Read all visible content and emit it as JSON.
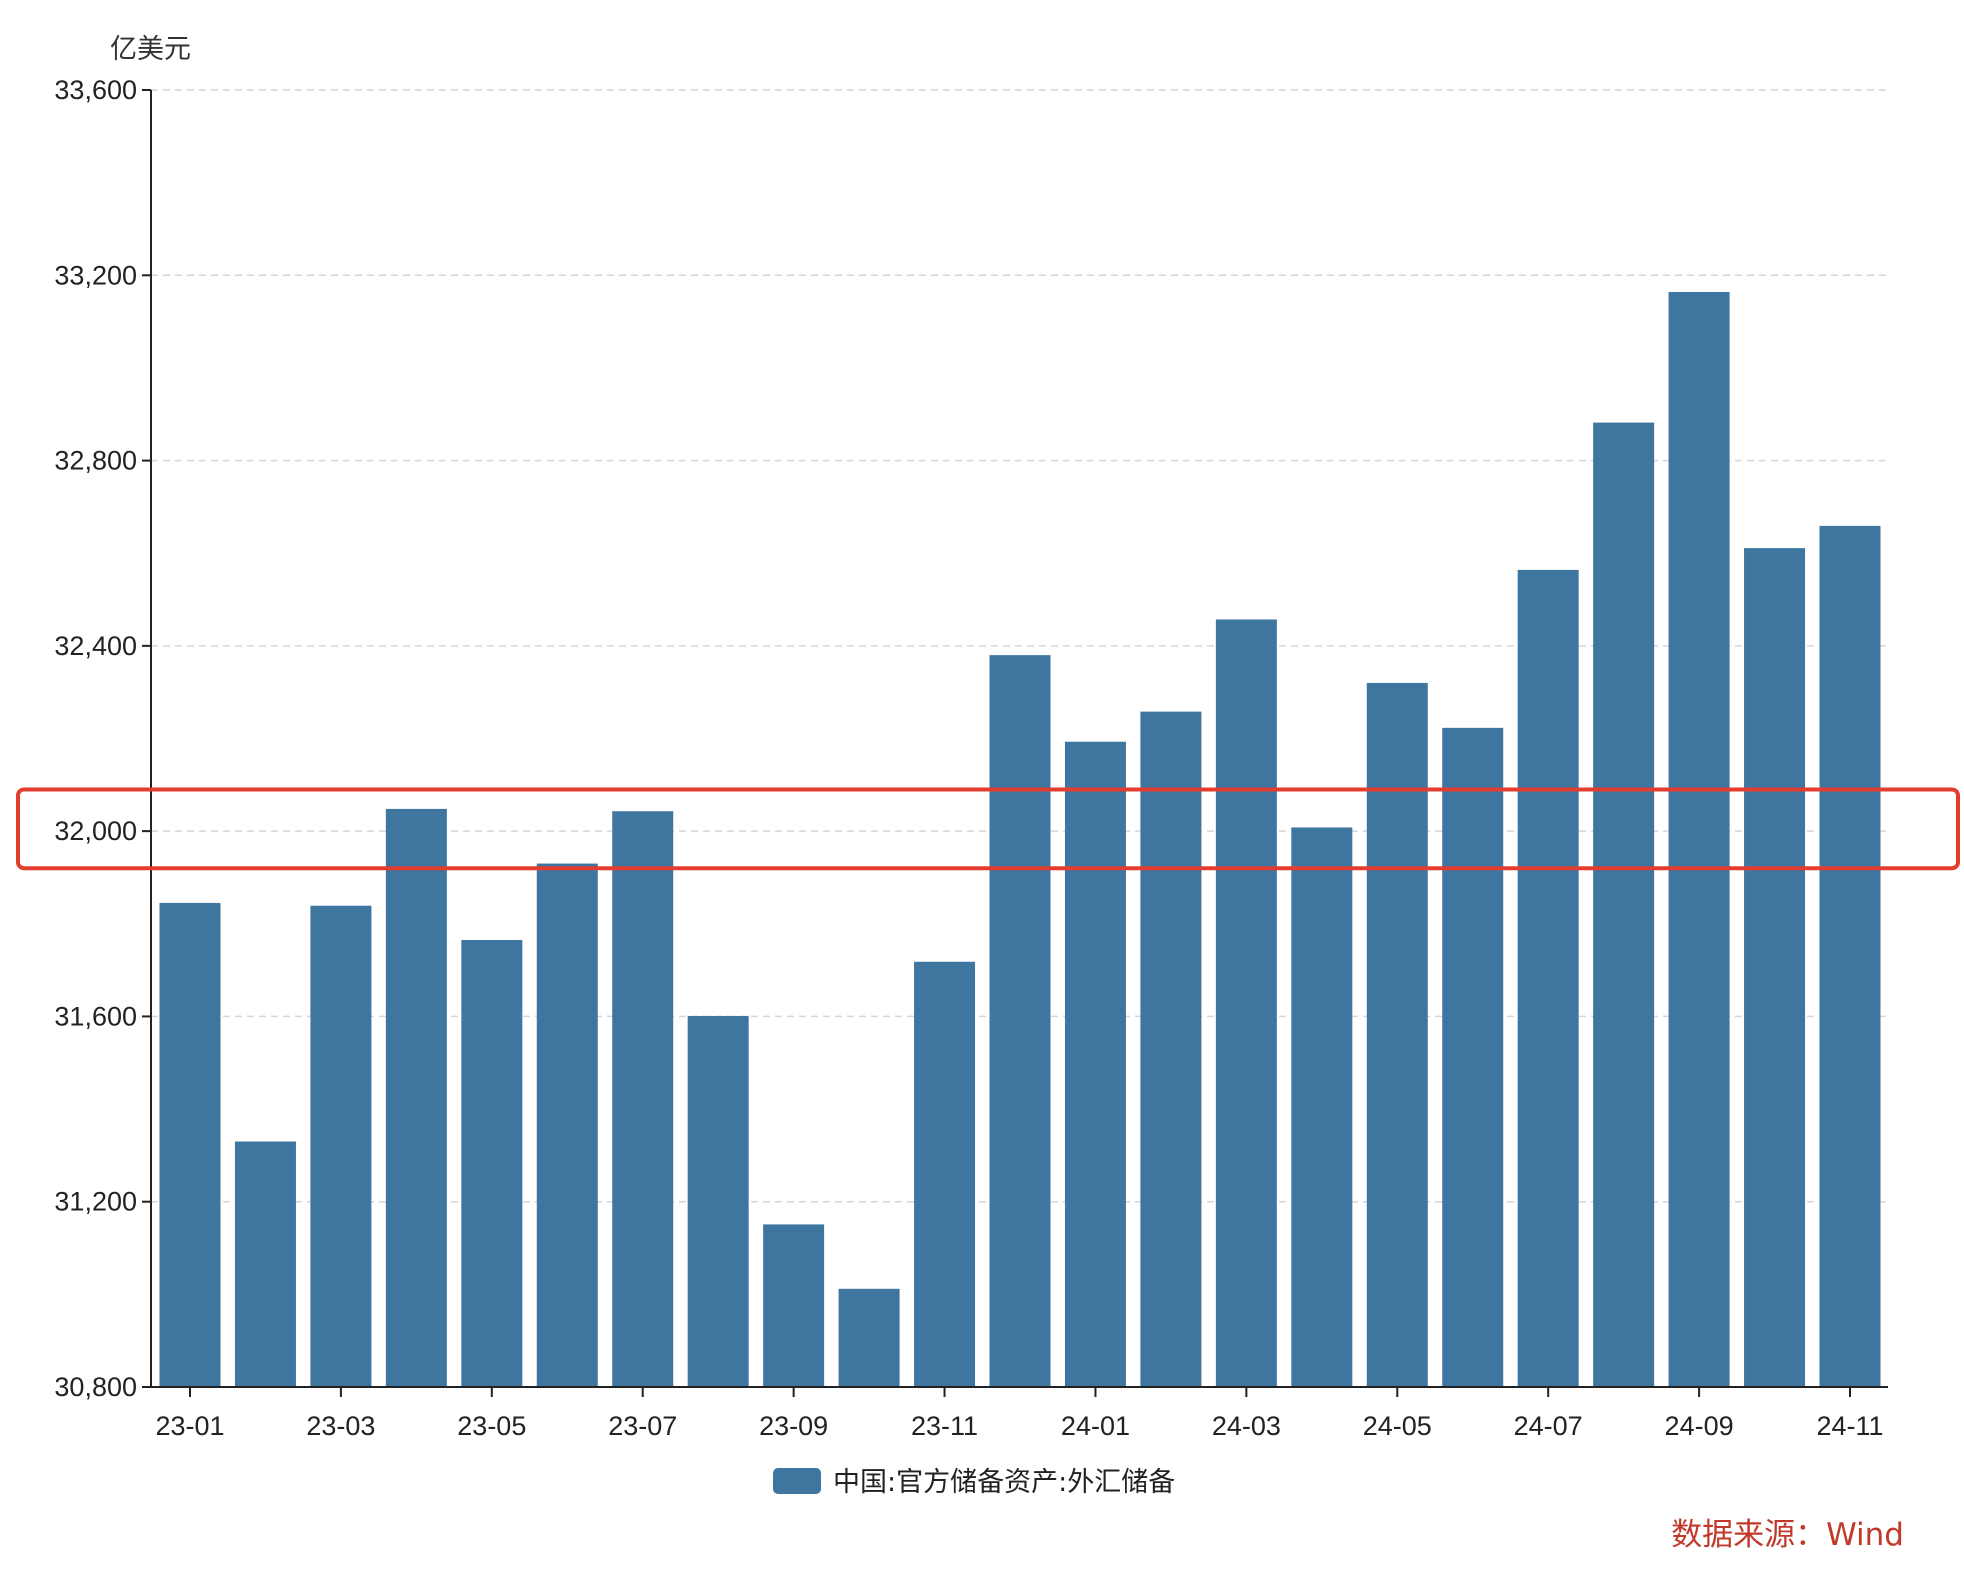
{
  "chart_data": {
    "type": "bar",
    "title": "",
    "ylabel": "亿美元",
    "xlabel": "",
    "ylim": [
      30800,
      33600
    ],
    "yticks": [
      30800,
      31200,
      31600,
      32000,
      32400,
      32800,
      33200,
      33600
    ],
    "ytick_labels": [
      "30,800",
      "31,200",
      "31,600",
      "32,000",
      "32,400",
      "32,800",
      "33,200",
      "33,600"
    ],
    "categories": [
      "23-01",
      "23-02",
      "23-03",
      "23-04",
      "23-05",
      "23-06",
      "23-07",
      "23-08",
      "23-09",
      "23-10",
      "23-11",
      "23-12",
      "24-01",
      "24-02",
      "24-03",
      "24-04",
      "24-05",
      "24-06",
      "24-07",
      "24-08",
      "24-09",
      "24-10",
      "24-11"
    ],
    "xtick_labels": [
      "23-01",
      "23-03",
      "23-05",
      "23-07",
      "23-09",
      "23-11",
      "24-01",
      "24-03",
      "24-05",
      "24-07",
      "24-09",
      "24-11"
    ],
    "series": [
      {
        "name": "中国:官方储备资产:外汇储备",
        "color": "#3e76a0",
        "values": [
          31845,
          31330,
          31839,
          32048,
          31765,
          31930,
          32043,
          31601,
          31151,
          31012,
          31718,
          32380,
          32193,
          32258,
          32457,
          32008,
          32320,
          32223,
          32564,
          32882,
          33164,
          32611,
          32659
        ]
      }
    ],
    "grid": "horizontal-dashed",
    "legend_position": "bottom-center",
    "highlight": {
      "type": "rectangle",
      "color": "#e23d2e",
      "y_range": [
        31920,
        32090
      ]
    },
    "source": "数据来源：Wind"
  }
}
